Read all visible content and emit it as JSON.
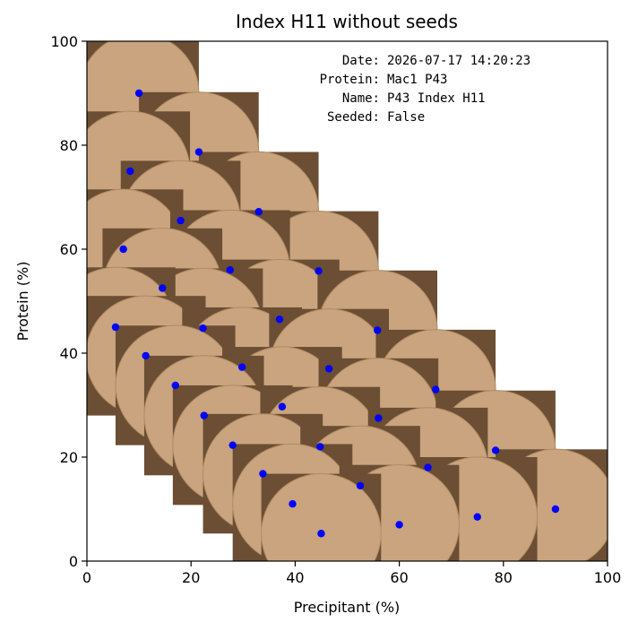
{
  "chart_data": {
    "type": "scatter",
    "title": "Index H11 without seeds",
    "xlabel": "Precipitant (%)",
    "ylabel": "Protein (%)",
    "xlim": [
      0,
      100
    ],
    "ylim": [
      0,
      100
    ],
    "xticks": [
      0,
      20,
      40,
      60,
      80,
      100
    ],
    "yticks": [
      0,
      20,
      40,
      60,
      80,
      100
    ],
    "grid": false,
    "point_color": "#0000ff",
    "background_tile_color": "#c9a47e",
    "info": {
      "date_label": "Date:",
      "date_value": "2026-07-17 14:20:23",
      "protein_label": "Protein:",
      "protein_value": "Mac1 P43",
      "name_label": "Name:",
      "name_value": "P43 Index H11",
      "seeded_label": "Seeded:",
      "seeded_value": "False"
    },
    "points": [
      {
        "x": 10.0,
        "y": 90.0
      },
      {
        "x": 21.5,
        "y": 78.7
      },
      {
        "x": 8.3,
        "y": 75.0
      },
      {
        "x": 33.0,
        "y": 67.2
      },
      {
        "x": 18.0,
        "y": 65.5
      },
      {
        "x": 7.0,
        "y": 60.0
      },
      {
        "x": 44.5,
        "y": 55.8
      },
      {
        "x": 27.5,
        "y": 56.0
      },
      {
        "x": 14.5,
        "y": 52.5
      },
      {
        "x": 37.0,
        "y": 46.5
      },
      {
        "x": 22.3,
        "y": 44.8
      },
      {
        "x": 5.5,
        "y": 45.0
      },
      {
        "x": 55.8,
        "y": 44.4
      },
      {
        "x": 11.3,
        "y": 39.5
      },
      {
        "x": 29.8,
        "y": 37.3
      },
      {
        "x": 46.5,
        "y": 37.0
      },
      {
        "x": 17.0,
        "y": 33.8
      },
      {
        "x": 67.0,
        "y": 33.0
      },
      {
        "x": 37.5,
        "y": 29.7
      },
      {
        "x": 22.5,
        "y": 28.0
      },
      {
        "x": 56.0,
        "y": 27.5
      },
      {
        "x": 28.0,
        "y": 22.3
      },
      {
        "x": 44.8,
        "y": 22.0
      },
      {
        "x": 78.5,
        "y": 21.3
      },
      {
        "x": 65.5,
        "y": 18.0
      },
      {
        "x": 33.8,
        "y": 16.8
      },
      {
        "x": 52.5,
        "y": 14.5
      },
      {
        "x": 39.5,
        "y": 11.0
      },
      {
        "x": 90.0,
        "y": 10.0
      },
      {
        "x": 75.0,
        "y": 8.5
      },
      {
        "x": 60.0,
        "y": 7.0
      },
      {
        "x": 45.0,
        "y": 5.3
      }
    ]
  }
}
